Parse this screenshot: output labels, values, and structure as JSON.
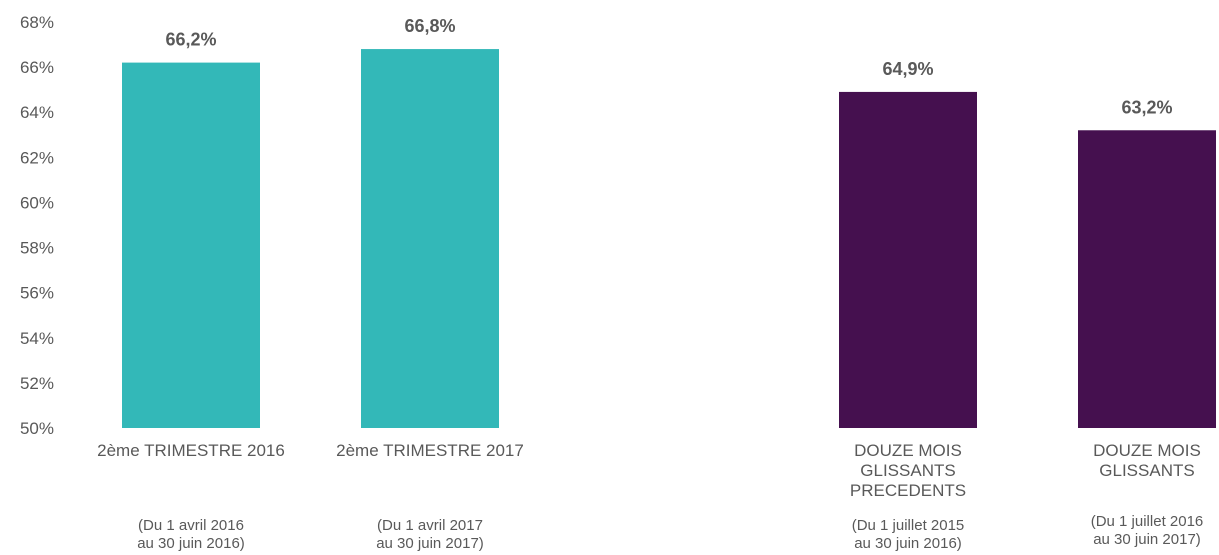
{
  "chart_data": {
    "type": "bar",
    "ylim": [
      50,
      68
    ],
    "yticks": [
      "50%",
      "52%",
      "54%",
      "56%",
      "58%",
      "60%",
      "62%",
      "64%",
      "66%",
      "68%"
    ],
    "grid": false,
    "legend": "none",
    "categories": [
      {
        "label": "2ème TRIMESTRE 2016",
        "sub": "(Du 1 avril 2016\nau 30 juin 2016)",
        "value": 66.2,
        "data_label": "66,2%",
        "color": "#33B8B8"
      },
      {
        "label": "2ème TRIMESTRE 2017",
        "sub": "(Du 1 avril 2017\nau 30 juin 2017)",
        "value": 66.8,
        "data_label": "66,8%",
        "color": "#33B8B8"
      },
      {
        "label": "DOUZE MOIS\nGLISSANTS\nPRECEDENTS",
        "sub": "(Du 1 juillet 2015\nau 30 juin 2016)",
        "value": 64.9,
        "data_label": "64,9%",
        "color": "#45104F"
      },
      {
        "label": "DOUZE MOIS\nGLISSANTS",
        "sub": "(Du 1 juillet 2016\nau 30 juin 2017)",
        "value": 63.2,
        "data_label": "63,2%",
        "color": "#45104F"
      }
    ]
  }
}
